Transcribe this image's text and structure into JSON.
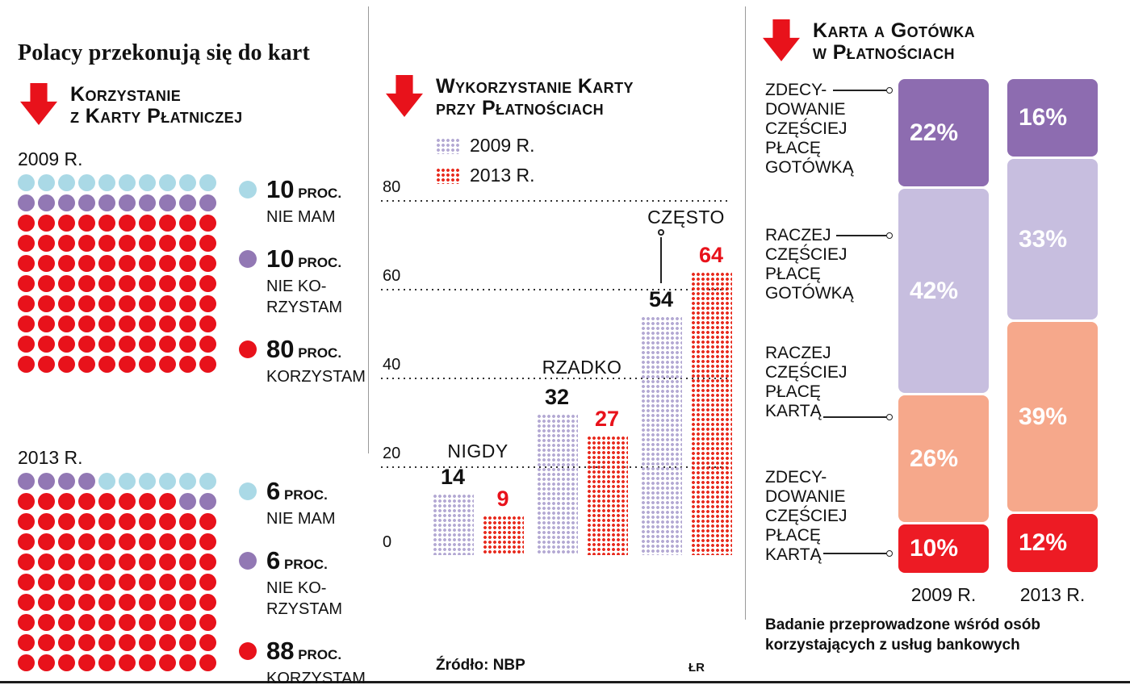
{
  "page": {
    "title": "Polacy przekonują się do kart",
    "source": "Źródło: NBP",
    "credit": "ŁR"
  },
  "colors": {
    "red": "#e8121b",
    "dot_blue": "#aad9e6",
    "dot_purple": "#9278b4",
    "dot_red": "#e8121b",
    "bar_2009": "#b3a9d3",
    "bar_2013": "#e8291c",
    "stack_dark_purple": "#8d6cb0",
    "stack_light_purple": "#c7bedf",
    "stack_salmon": "#f6a88b",
    "stack_red": "#ed1b24"
  },
  "left_panel": {
    "heading": [
      "Korzystanie",
      "z Karty Płatniczej"
    ],
    "waffles": [
      {
        "year": "2009 R.",
        "rows": [
          "BBBBBBBBBB",
          "PPPPPPPPPP",
          "RRRRRRRRRR",
          "RRRRRRRRRR",
          "RRRRRRRRRR",
          "RRRRRRRRRR",
          "RRRRRRRRRR",
          "RRRRRRRRRR",
          "RRRRRRRRRR",
          "RRRRRRRRRR"
        ],
        "legend": [
          {
            "value": "10",
            "unit": "PROC.",
            "lines": [
              "NIE MAM"
            ],
            "color": "B"
          },
          {
            "value": "10",
            "unit": "PROC.",
            "lines": [
              "NIE KO-",
              "RZYSTAM"
            ],
            "color": "P"
          },
          {
            "value": "80",
            "unit": "PROC.",
            "lines": [
              "KORZYSTAM"
            ],
            "color": "R"
          }
        ]
      },
      {
        "year": "2013 R.",
        "rows": [
          "PPPPBBBBBB",
          "RRRRRRRRPP",
          "RRRRRRRRRR",
          "RRRRRRRRRR",
          "RRRRRRRRRR",
          "RRRRRRRRRR",
          "RRRRRRRRRR",
          "RRRRRRRRRR",
          "RRRRRRRRRR",
          "RRRRRRRRRR"
        ],
        "legend": [
          {
            "value": "6",
            "unit": "PROC.",
            "lines": [
              "NIE MAM"
            ],
            "color": "B"
          },
          {
            "value": "6",
            "unit": "PROC.",
            "lines": [
              "NIE KO-",
              "RZYSTAM"
            ],
            "color": "P"
          },
          {
            "value": "88",
            "unit": "PROC.",
            "lines": [
              "KORZYSTAM"
            ],
            "color": "R"
          }
        ]
      }
    ]
  },
  "middle_panel": {
    "heading": [
      "Wykorzystanie Karty",
      "przy Płatnościach"
    ],
    "legend": [
      {
        "label": "2009 R.",
        "color_key": "bar_2009"
      },
      {
        "label": "2013 R.",
        "color_key": "bar_2013"
      }
    ],
    "yticks": [
      0,
      20,
      40,
      60,
      80
    ],
    "groups": [
      {
        "label": "NIGDY",
        "v2009": 14,
        "v2013": 9,
        "pointer": false
      },
      {
        "label": "RZADKO",
        "v2009": 32,
        "v2013": 27,
        "pointer": false
      },
      {
        "label": "CZĘSTO",
        "v2009": 54,
        "v2013": 64,
        "pointer": true
      }
    ]
  },
  "right_panel": {
    "heading": [
      "Karta a Gotówka",
      "w Płatnościach"
    ],
    "categories": [
      {
        "lines": [
          "ZDECY-",
          "DOWANIE",
          "CZĘŚCIEJ",
          "PŁACĘ",
          "GOTÓWKĄ"
        ],
        "color_key": "stack_dark_purple",
        "v2009": 22,
        "v2013": 16
      },
      {
        "lines": [
          "RACZEJ",
          "CZĘŚCIEJ",
          "PŁACĘ",
          "GOTÓWKĄ"
        ],
        "color_key": "stack_light_purple",
        "v2009": 42,
        "v2013": 33
      },
      {
        "lines": [
          "RACZEJ",
          "CZĘŚCIEJ",
          "PŁACĘ",
          "KARTĄ"
        ],
        "color_key": "stack_salmon",
        "v2009": 26,
        "v2013": 39
      },
      {
        "lines": [
          "ZDECY-",
          "DOWANIE",
          "CZĘŚCIEJ",
          "PŁACĘ",
          "KARTĄ"
        ],
        "color_key": "stack_red",
        "v2009": 10,
        "v2013": 12
      }
    ],
    "column_labels": [
      "2009 R.",
      "2013 R."
    ],
    "footnote": [
      "Badanie przeprowadzone wśród osób",
      "korzystających z usług bankowych"
    ]
  },
  "chart_data": [
    {
      "type": "waffle",
      "title": "Korzystanie z karty płatniczej",
      "unit": "proc.",
      "series": [
        {
          "year": "2009",
          "segments": [
            {
              "label": "NIE MAM",
              "value": 10,
              "color": "#aad9e6"
            },
            {
              "label": "NIE KORZYSTAM",
              "value": 10,
              "color": "#9278b4"
            },
            {
              "label": "KORZYSTAM",
              "value": 80,
              "color": "#e8121b"
            }
          ]
        },
        {
          "year": "2013",
          "segments": [
            {
              "label": "NIE MAM",
              "value": 6,
              "color": "#aad9e6"
            },
            {
              "label": "NIE KORZYSTAM",
              "value": 6,
              "color": "#9278b4"
            },
            {
              "label": "KORZYSTAM",
              "value": 88,
              "color": "#e8121b"
            }
          ]
        }
      ]
    },
    {
      "type": "bar",
      "title": "Wykorzystanie karty przy płatnościach",
      "categories": [
        "NIGDY",
        "RZADKO",
        "CZĘSTO"
      ],
      "series": [
        {
          "name": "2009 R.",
          "values": [
            14,
            32,
            54
          ],
          "color": "#b3a9d3"
        },
        {
          "name": "2013 R.",
          "values": [
            9,
            27,
            64
          ],
          "color": "#e8291c"
        }
      ],
      "ylim": [
        0,
        80
      ],
      "yticks": [
        0,
        20,
        40,
        60,
        80
      ],
      "grid": "dotted-horizontal",
      "legend_position": "top-left",
      "source": "NBP"
    },
    {
      "type": "stacked-bar",
      "title": "Karta a gotówka w płatnościach",
      "unit": "%",
      "categories": [
        "2009 R.",
        "2013 R."
      ],
      "series": [
        {
          "name": "ZDECYDOWANIE CZĘŚCIEJ PŁACĘ GOTÓWKĄ",
          "values": [
            22,
            16
          ],
          "color": "#8d6cb0"
        },
        {
          "name": "RACZEJ CZĘŚCIEJ PŁACĘ GOTÓWKĄ",
          "values": [
            42,
            33
          ],
          "color": "#c7bedf"
        },
        {
          "name": "RACZEJ CZĘŚCIEJ PŁACĘ KARTĄ",
          "values": [
            26,
            39
          ],
          "color": "#f6a88b"
        },
        {
          "name": "ZDECYDOWANIE CZĘŚCIEJ PŁACĘ KARTĄ",
          "values": [
            10,
            12
          ],
          "color": "#ed1b24"
        }
      ],
      "note": "Badanie przeprowadzone wśród osób korzystających z usług bankowych"
    }
  ]
}
